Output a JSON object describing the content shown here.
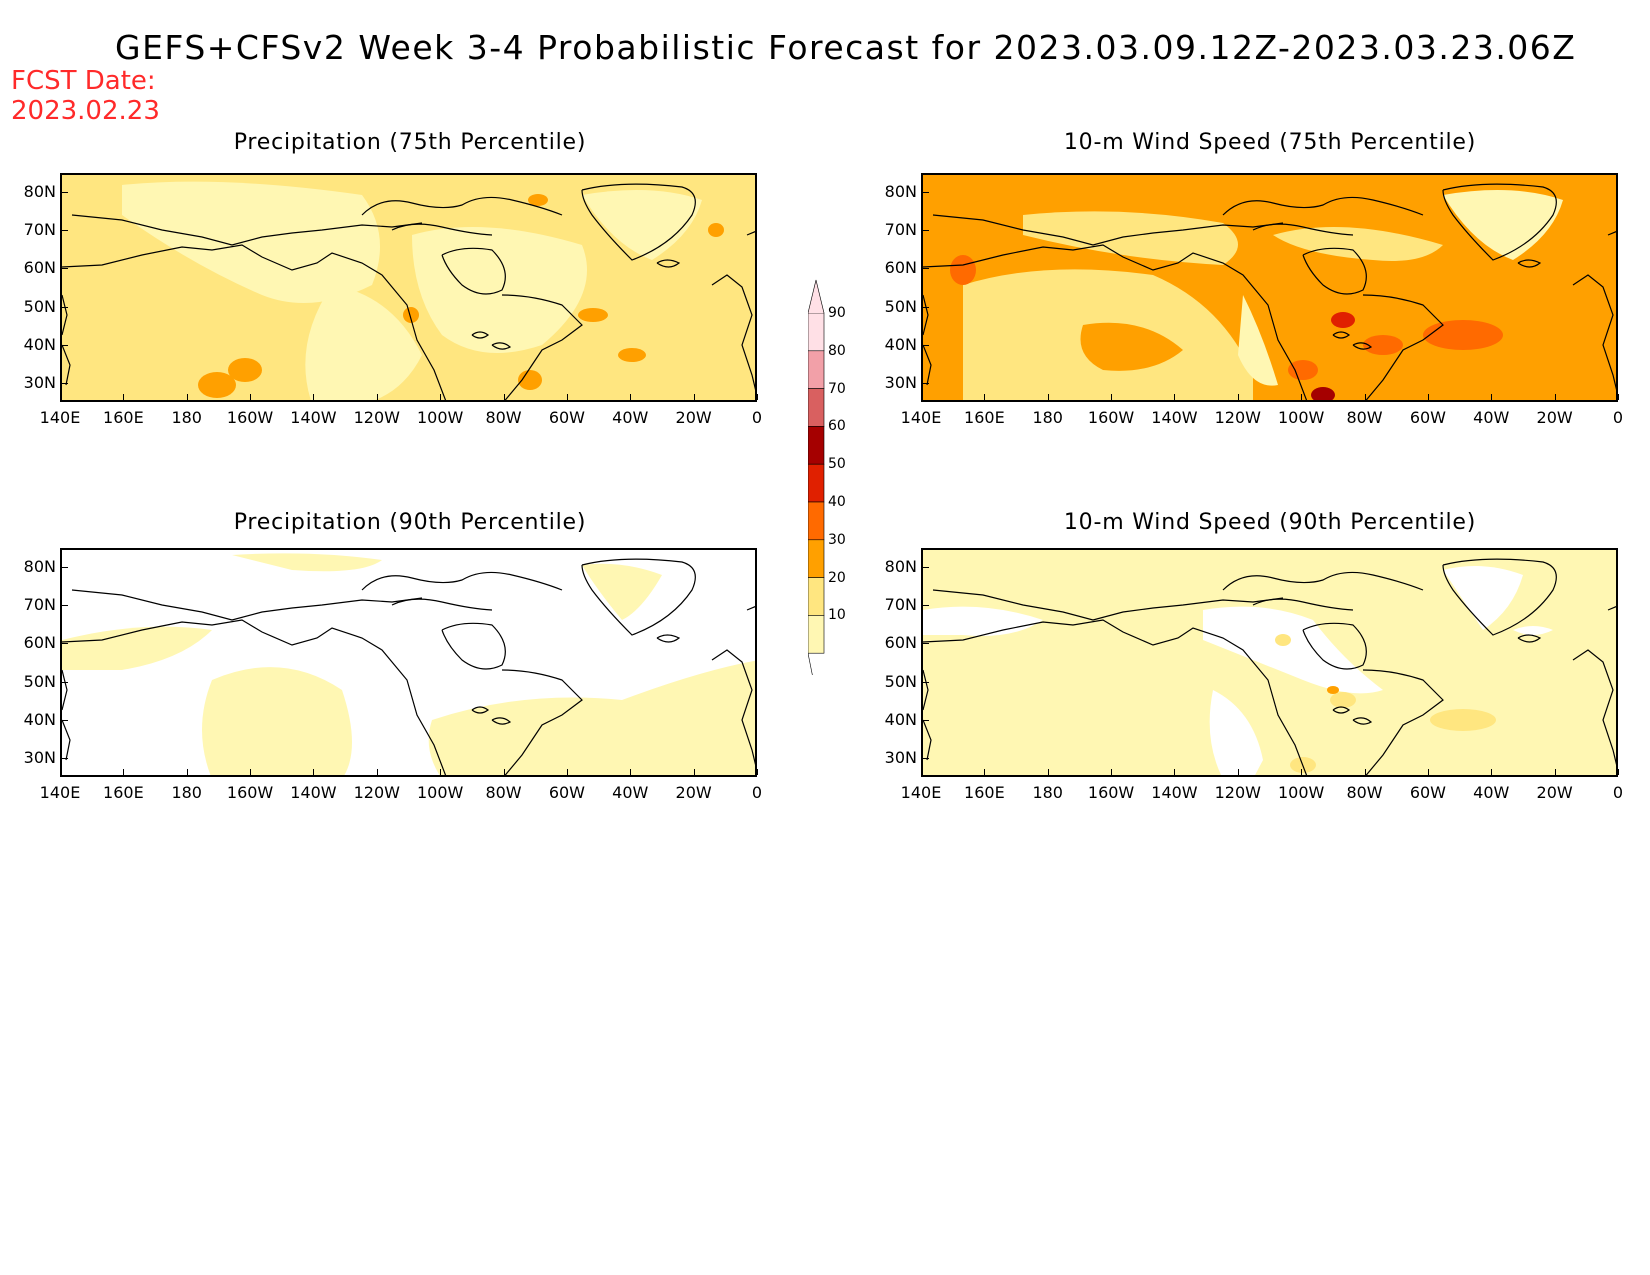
{
  "title": "GEFS+CFSv2 Week 3-4 Probabilistic Forecast for 2023.03.09.12Z-2023.03.23.06Z",
  "fcst_label": "FCST Date:",
  "fcst_date": "2023.02.23",
  "panels": [
    {
      "title": "Precipitation (75th Percentile)",
      "level": "p75"
    },
    {
      "title": "10-m Wind Speed (75th Percentile)",
      "level": "w75"
    },
    {
      "title": "Precipitation (90th Percentile)",
      "level": "p90"
    },
    {
      "title": "10-m Wind Speed (90th Percentile)",
      "level": "w90"
    }
  ],
  "lat_labels": [
    "80N",
    "70N",
    "60N",
    "50N",
    "40N",
    "30N"
  ],
  "lon_labels": [
    "140E",
    "160E",
    "180",
    "160W",
    "140W",
    "120W",
    "100W",
    "80W",
    "60W",
    "40W",
    "20W",
    "0"
  ],
  "colorbar": {
    "levels": [
      "10",
      "20",
      "30",
      "40",
      "50",
      "60",
      "70",
      "80",
      "90"
    ],
    "colors": [
      "#fff7b3",
      "#ffe680",
      "#ffa000",
      "#ff6a00",
      "#e02000",
      "#a50000",
      "#d96060",
      "#f2a0a8",
      "#ffe0e6"
    ]
  }
}
